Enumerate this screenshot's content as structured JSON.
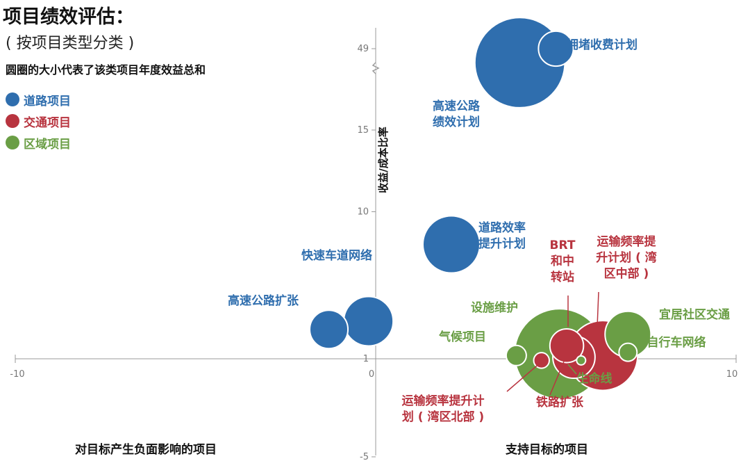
{
  "header": {
    "title": "项目绩效评估：",
    "subtitle": "( 按项目类型分类 )",
    "size_note": "圆圈的大小代表了该类项目年度效益总和"
  },
  "legend": [
    {
      "label": "道路项目",
      "color": "#2f6eae"
    },
    {
      "label": "交通项目",
      "color": "#b8343f"
    },
    {
      "label": "区域项目",
      "color": "#6a9e45"
    }
  ],
  "axis_captions": {
    "left": "对目标产生负面影响的项目",
    "right": "支持目标的项目"
  },
  "chart_data": {
    "type": "scatter",
    "xlabel": "",
    "ylabel": "收益/成本比率",
    "xlim": [
      -10,
      10
    ],
    "x_ticks": [
      "-10",
      "0",
      "10"
    ],
    "y_ticks": [
      "49",
      "15",
      "10",
      "1",
      "-5"
    ],
    "y_axis_break": "between 15 and 49",
    "grid": false,
    "points": [
      {
        "label": "拥堵收费计划",
        "category": "道路项目",
        "x": 5.0,
        "y": 49,
        "size": 1.5,
        "color": "#2f6eae"
      },
      {
        "label": "高速公路\n绩效计划",
        "category": "道路项目",
        "x": 4.0,
        "y": 15.5,
        "size": 10,
        "color": "#2f6eae"
      },
      {
        "label": "道路效率\n提升计划",
        "category": "道路项目",
        "x": 2.1,
        "y": 8.0,
        "size": 4,
        "color": "#2f6eae"
      },
      {
        "label": "快速车道网络",
        "category": "道路项目",
        "x": -0.2,
        "y": 3.3,
        "size": 3,
        "color": "#2f6eae"
      },
      {
        "label": "高速公路扩张",
        "category": "道路项目",
        "x": -1.3,
        "y": 2.8,
        "size": 1.8,
        "color": "#2f6eae"
      },
      {
        "label": "BRT\n和中\n转站",
        "category": "交通项目",
        "x": 5.3,
        "y": 1.8,
        "size": 1.4,
        "color": "#b8343f"
      },
      {
        "label": "运输频率提\n升计划 ( 湾\n区中部 )",
        "category": "交通项目",
        "x": 6.3,
        "y": 1.2,
        "size": 6,
        "color": "#b8343f"
      },
      {
        "label": "铁路扩张",
        "category": "交通项目",
        "x": 5.5,
        "y": 1.1,
        "size": 2.2,
        "color": "#b8343f"
      },
      {
        "label": "运输频率提升计\n划 ( 湾区北部 )",
        "category": "交通项目",
        "x": 4.6,
        "y": 0.9,
        "size": 0.3,
        "color": "#b8343f"
      },
      {
        "label": "宜居社区交通",
        "category": "区域项目",
        "x": 7.0,
        "y": 2.5,
        "size": 2.6,
        "color": "#6a9e45"
      },
      {
        "label": "设施维护",
        "category": "区域项目",
        "x": 5.1,
        "y": 1.3,
        "size": 10,
        "color": "#6a9e45"
      },
      {
        "label": "气候项目",
        "category": "区域项目",
        "x": 3.9,
        "y": 1.2,
        "size": 0.5,
        "color": "#6a9e45"
      },
      {
        "label": "自行车网络",
        "category": "区域项目",
        "x": 7.0,
        "y": 1.4,
        "size": 0.4,
        "color": "#6a9e45"
      },
      {
        "label": "生命线",
        "category": "区域项目",
        "x": 5.7,
        "y": 0.9,
        "size": 0.1,
        "color": "#6a9e45"
      }
    ]
  }
}
